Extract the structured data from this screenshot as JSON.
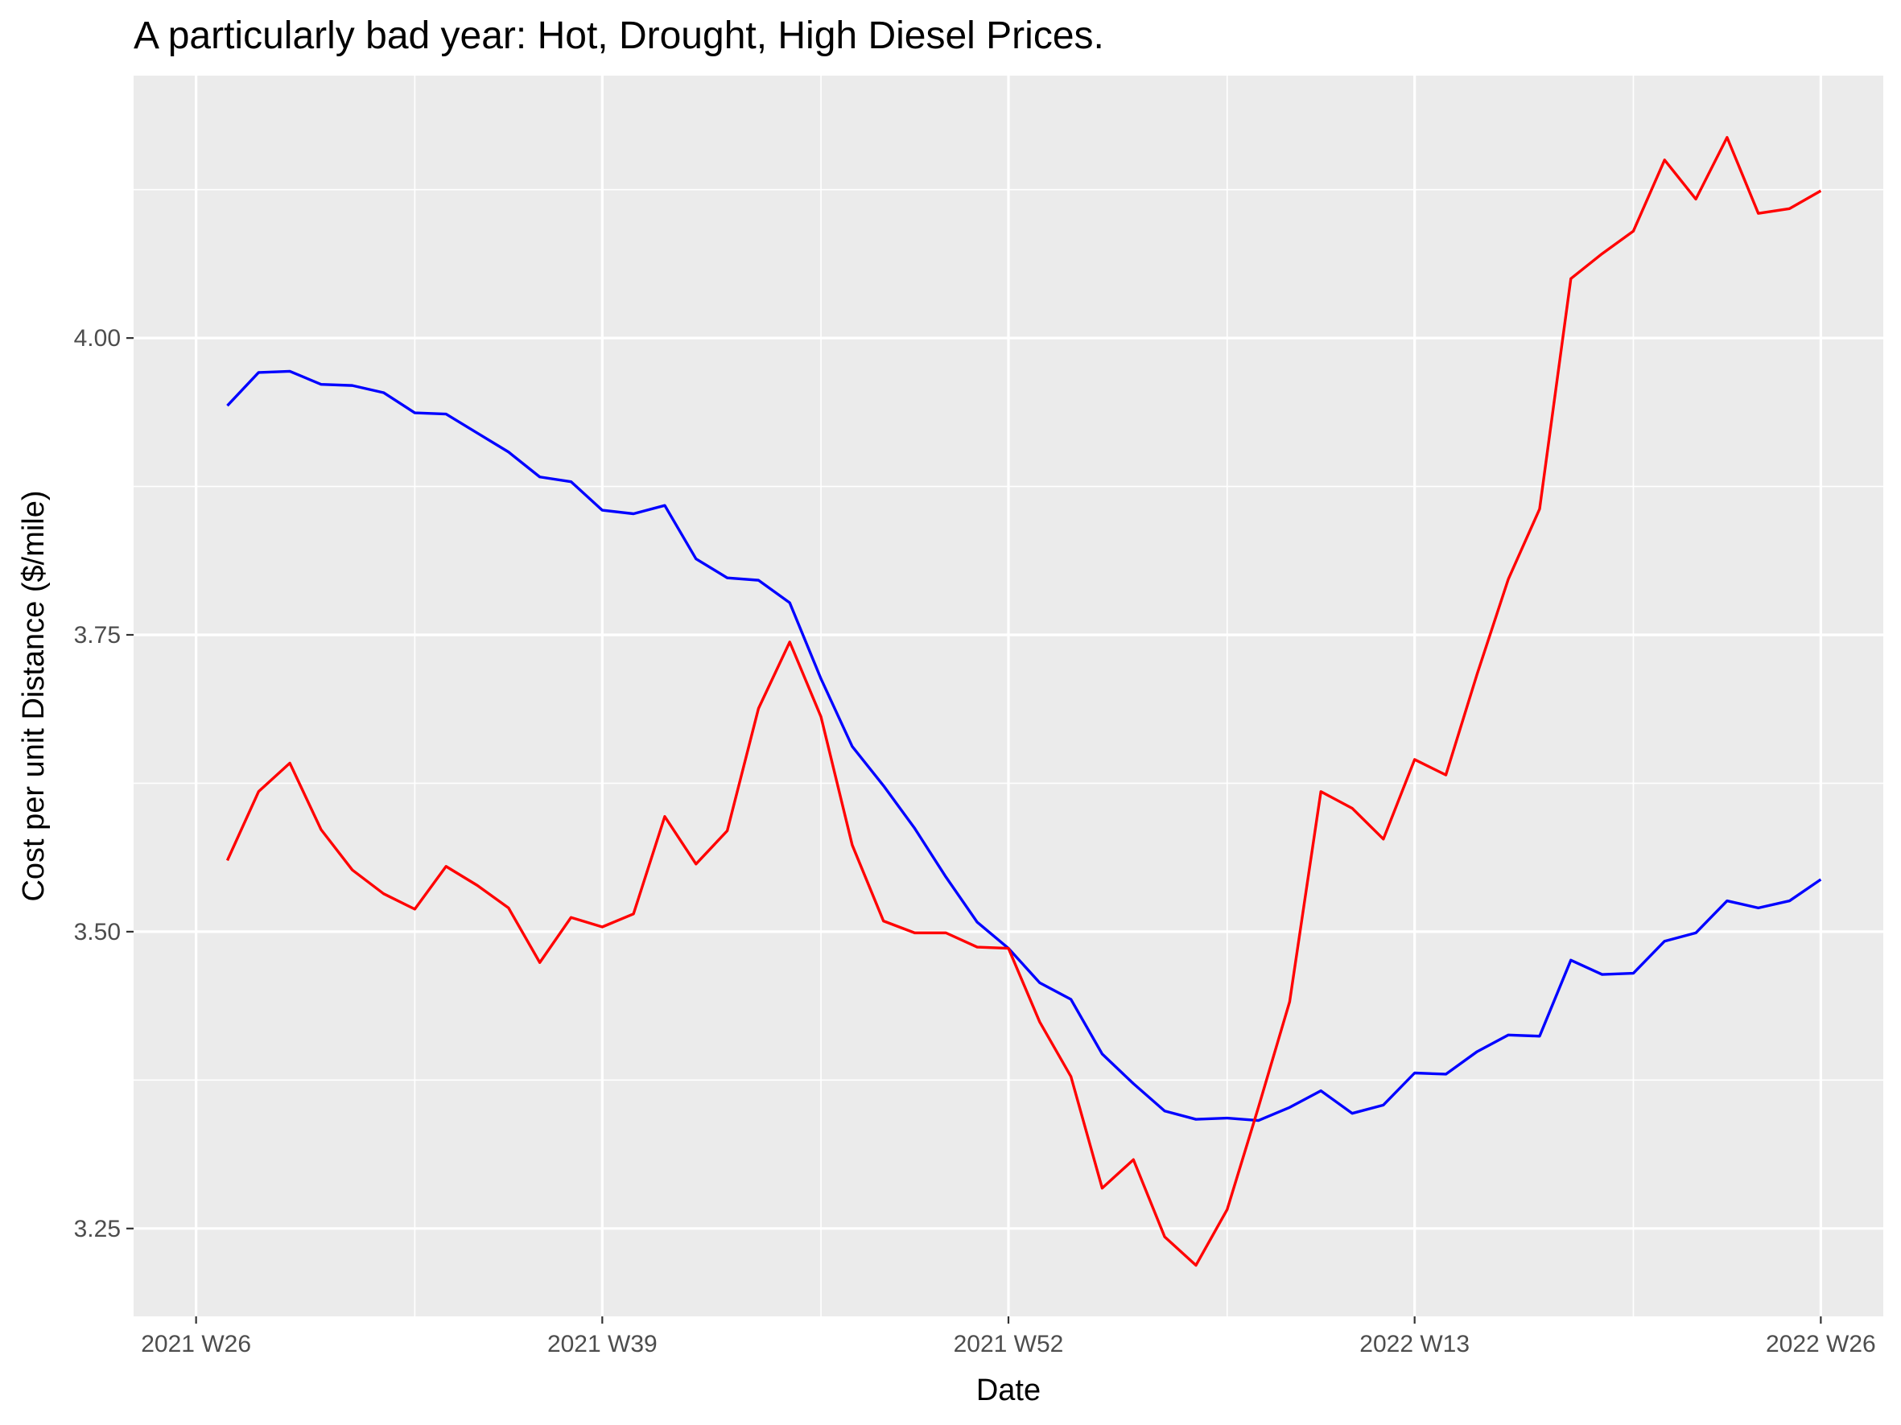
{
  "chart_data": {
    "type": "line",
    "title": "A particularly bad year: Hot, Drought, High Diesel Prices.",
    "xlabel": "Date",
    "ylabel": "Cost per unit Distance ($/mile)",
    "x_axis": {
      "kind": "iso-week",
      "ticks": [
        {
          "week": "2021-W26",
          "label": "2021 W26"
        },
        {
          "week": "2021-W39",
          "label": "2021 W39"
        },
        {
          "week": "2021-W52",
          "label": "2021 W52"
        },
        {
          "week": "2022-W13",
          "label": "2022 W13"
        },
        {
          "week": "2022-W26",
          "label": "2022 W26"
        }
      ],
      "minor_breaks": [
        "2021-W33",
        "2021-W46",
        "2022-W07",
        "2022-W20"
      ],
      "range": [
        "2021-W24",
        "2022-W28"
      ]
    },
    "y_axis": {
      "ticks": [
        {
          "value": 3.25,
          "label": "3.25"
        },
        {
          "value": 3.5,
          "label": "3.50"
        },
        {
          "value": 3.75,
          "label": "3.75"
        },
        {
          "value": 4.0,
          "label": "4.00"
        }
      ],
      "minor_breaks": [
        3.375,
        3.625,
        3.875,
        4.125
      ],
      "range": [
        3.176,
        4.221
      ]
    },
    "grid": true,
    "legend": "none",
    "colors": {
      "panel_background": "#ebebeb",
      "grid": "#ffffff",
      "axis_ticks": "#333333"
    },
    "x": [
      "2021-W27",
      "2021-W28",
      "2021-W29",
      "2021-W30",
      "2021-W31",
      "2021-W32",
      "2021-W33",
      "2021-W34",
      "2021-W35",
      "2021-W36",
      "2021-W37",
      "2021-W38",
      "2021-W39",
      "2021-W40",
      "2021-W41",
      "2021-W42",
      "2021-W43",
      "2021-W44",
      "2021-W45",
      "2021-W46",
      "2021-W47",
      "2021-W48",
      "2021-W49",
      "2021-W50",
      "2021-W51",
      "2021-W52",
      "2022-W01",
      "2022-W02",
      "2022-W03",
      "2022-W04",
      "2022-W05",
      "2022-W06",
      "2022-W07",
      "2022-W08",
      "2022-W09",
      "2022-W10",
      "2022-W11",
      "2022-W12",
      "2022-W13",
      "2022-W14",
      "2022-W15",
      "2022-W16",
      "2022-W17",
      "2022-W18",
      "2022-W19",
      "2022-W20",
      "2022-W21",
      "2022-W22",
      "2022-W23",
      "2022-W24",
      "2022-W25",
      "2022-W26"
    ],
    "series": [
      {
        "color": "#0000ff",
        "values": [
          3.943,
          3.971,
          3.972,
          3.961,
          3.96,
          3.954,
          3.937,
          3.936,
          3.92,
          3.904,
          3.883,
          3.879,
          3.855,
          3.852,
          3.859,
          3.814,
          3.798,
          3.796,
          3.777,
          3.713,
          3.656,
          3.623,
          3.587,
          3.546,
          3.508,
          3.486,
          3.457,
          3.443,
          3.397,
          3.372,
          3.349,
          3.342,
          3.343,
          3.341,
          3.352,
          3.366,
          3.347,
          3.354,
          3.381,
          3.38,
          3.399,
          3.413,
          3.412,
          3.476,
          3.464,
          3.465,
          3.492,
          3.499,
          3.526,
          3.52,
          3.526,
          3.544
        ]
      },
      {
        "color": "#ff0000",
        "values": [
          3.56,
          3.618,
          3.642,
          3.586,
          3.552,
          3.532,
          3.519,
          3.555,
          3.539,
          3.52,
          3.474,
          3.512,
          3.504,
          3.515,
          3.597,
          3.557,
          3.585,
          3.688,
          3.744,
          3.681,
          3.573,
          3.509,
          3.499,
          3.499,
          3.487,
          3.486,
          3.424,
          3.378,
          3.284,
          3.308,
          3.243,
          3.219,
          3.266,
          3.352,
          3.441,
          3.618,
          3.604,
          3.578,
          3.645,
          3.632,
          3.717,
          3.797,
          3.856,
          4.05,
          4.071,
          4.09,
          4.15,
          4.117,
          4.169,
          4.105,
          4.109,
          4.124
        ]
      }
    ]
  }
}
